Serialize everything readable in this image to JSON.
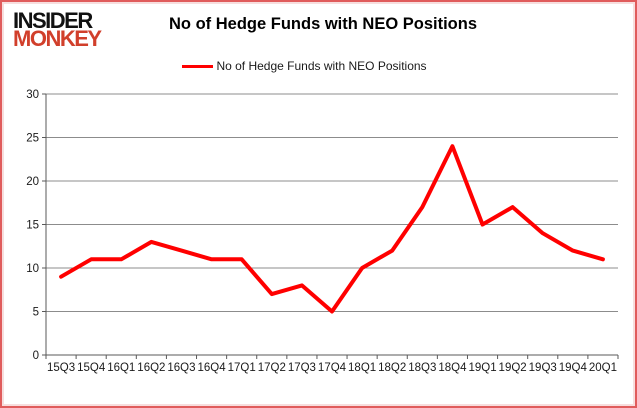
{
  "header": {
    "logo_line1": "INSIDER",
    "logo_line2": "MONKEY",
    "title": "No of Hedge Funds with NEO Positions"
  },
  "legend": {
    "label": "No of Hedge Funds with NEO Positions"
  },
  "chart_data": {
    "type": "line",
    "title": "No of Hedge Funds with NEO Positions",
    "categories": [
      "15Q3",
      "15Q4",
      "16Q1",
      "16Q2",
      "16Q3",
      "16Q4",
      "17Q1",
      "17Q2",
      "17Q3",
      "17Q4",
      "18Q1",
      "18Q2",
      "18Q3",
      "18Q4",
      "19Q1",
      "19Q2",
      "19Q3",
      "19Q4",
      "20Q1"
    ],
    "series": [
      {
        "name": "No of Hedge Funds with NEO Positions",
        "color": "#ff0000",
        "values": [
          9,
          11,
          11,
          13,
          12,
          11,
          11,
          7,
          8,
          5,
          10,
          12,
          17,
          24,
          15,
          17,
          14,
          12,
          11
        ]
      }
    ],
    "xlabel": "",
    "ylabel": "",
    "ylim": [
      0,
      30
    ],
    "ytick_step": 5,
    "grid": "horizontal",
    "legend_position": "top"
  },
  "colors": {
    "series": "#ff0000",
    "gridline": "#8c8c8c",
    "axis": "#595959",
    "tick_label": "#1a1a1a",
    "frame_border": "#e05c5c",
    "logo_red": "#d13f2b"
  }
}
